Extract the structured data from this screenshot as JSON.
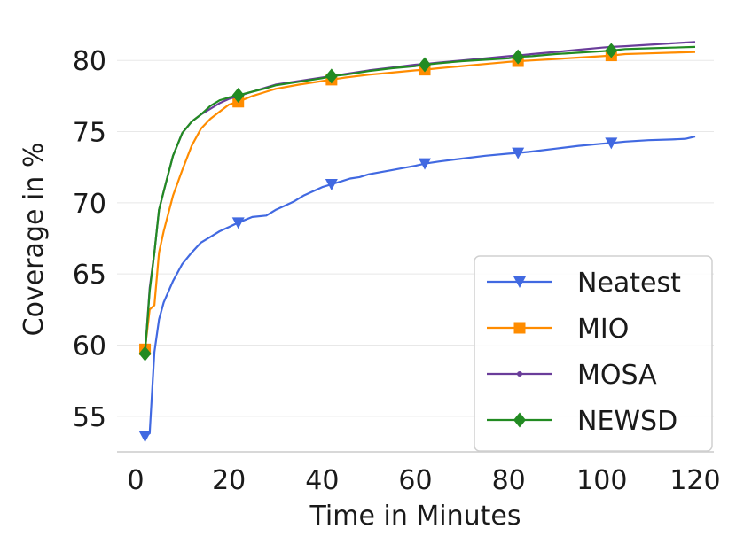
{
  "chart_data": {
    "type": "line",
    "title": "",
    "xlabel": "Time in Minutes",
    "ylabel": "Coverage in %",
    "xlim": [
      -4,
      124
    ],
    "ylim": [
      52.5,
      83
    ],
    "xticks": [
      0,
      20,
      40,
      60,
      80,
      100,
      120
    ],
    "yticks": [
      55,
      60,
      65,
      70,
      75,
      80
    ],
    "xtick_labels": [
      "0",
      "20",
      "40",
      "60",
      "80",
      "100",
      "120"
    ],
    "ytick_labels": [
      "55",
      "60",
      "65",
      "70",
      "75",
      "80"
    ],
    "grid": "horizontal",
    "legend_position": "bottom-right",
    "series": [
      {
        "name": "Neatest",
        "color": "#4169e1",
        "marker": "triangle-down",
        "x": [
          2,
          3,
          4,
          5,
          6,
          8,
          10,
          12,
          14,
          16,
          18,
          20,
          22,
          25,
          28,
          30,
          32,
          34,
          36,
          38,
          40,
          42,
          44,
          46,
          48,
          50,
          55,
          60,
          62,
          65,
          70,
          75,
          80,
          82,
          85,
          90,
          95,
          100,
          102,
          105,
          110,
          115,
          118,
          120
        ],
        "y": [
          53.6,
          53.8,
          59.5,
          61.8,
          63,
          64.5,
          65.7,
          66.5,
          67.2,
          67.6,
          68,
          68.3,
          68.6,
          69,
          69.1,
          69.5,
          69.8,
          70.1,
          70.5,
          70.8,
          71.1,
          71.3,
          71.5,
          71.7,
          71.8,
          72,
          72.3,
          72.6,
          72.75,
          72.9,
          73.1,
          73.3,
          73.45,
          73.5,
          73.6,
          73.8,
          74,
          74.15,
          74.2,
          74.3,
          74.4,
          74.45,
          74.5,
          74.65
        ],
        "marker_x": [
          2,
          22,
          42,
          62,
          82,
          102
        ]
      },
      {
        "name": "MIO",
        "color": "#ff8c00",
        "marker": "square",
        "x": [
          2,
          3,
          4,
          5,
          6,
          8,
          10,
          12,
          14,
          16,
          18,
          20,
          22,
          25,
          28,
          30,
          35,
          40,
          42,
          45,
          50,
          55,
          60,
          62,
          65,
          70,
          75,
          80,
          82,
          85,
          90,
          95,
          100,
          102,
          105,
          110,
          115,
          120
        ],
        "y": [
          59.7,
          62.5,
          62.8,
          66.5,
          68,
          70.5,
          72.3,
          74,
          75.2,
          75.9,
          76.4,
          76.9,
          77.1,
          77.5,
          77.8,
          78,
          78.3,
          78.55,
          78.65,
          78.8,
          79,
          79.15,
          79.3,
          79.35,
          79.45,
          79.6,
          79.75,
          79.9,
          79.95,
          80,
          80.1,
          80.2,
          80.3,
          80.35,
          80.45,
          80.5,
          80.55,
          80.6
        ],
        "marker_x": [
          2,
          22,
          42,
          62,
          82,
          102
        ]
      },
      {
        "name": "MOSA",
        "color": "#6a3d9a",
        "marker": "dot",
        "x": [
          2,
          3,
          4,
          5,
          6,
          8,
          10,
          12,
          14,
          16,
          18,
          20,
          22,
          25,
          28,
          30,
          35,
          40,
          42,
          45,
          50,
          55,
          60,
          62,
          65,
          70,
          75,
          80,
          82,
          85,
          90,
          95,
          100,
          102,
          105,
          110,
          115,
          120
        ],
        "y": [
          59.4,
          64,
          66.5,
          69.5,
          70.8,
          73.3,
          74.9,
          75.7,
          76.2,
          76.6,
          77,
          77.3,
          77.5,
          77.8,
          78.1,
          78.3,
          78.55,
          78.8,
          78.9,
          79.05,
          79.3,
          79.5,
          79.7,
          79.75,
          79.85,
          80,
          80.15,
          80.3,
          80.35,
          80.45,
          80.6,
          80.75,
          80.9,
          80.95,
          81,
          81.1,
          81.2,
          81.3
        ],
        "marker_x": [
          2,
          22,
          42,
          62,
          82,
          102
        ]
      },
      {
        "name": "NEWSD",
        "color": "#228b22",
        "marker": "diamond",
        "x": [
          2,
          3,
          4,
          5,
          6,
          8,
          10,
          12,
          14,
          16,
          18,
          20,
          22,
          25,
          28,
          30,
          35,
          40,
          42,
          45,
          50,
          55,
          60,
          62,
          65,
          70,
          75,
          80,
          82,
          85,
          90,
          95,
          100,
          102,
          105,
          110,
          115,
          120
        ],
        "y": [
          59.4,
          63.8,
          66.5,
          69.5,
          70.8,
          73.3,
          74.9,
          75.7,
          76.2,
          76.8,
          77.2,
          77.4,
          77.55,
          77.8,
          78.05,
          78.25,
          78.5,
          78.75,
          78.9,
          79,
          79.25,
          79.45,
          79.6,
          79.7,
          79.8,
          79.95,
          80.05,
          80.15,
          80.25,
          80.3,
          80.45,
          80.55,
          80.65,
          80.7,
          80.8,
          80.85,
          80.9,
          80.95
        ],
        "marker_x": [
          2,
          22,
          42,
          62,
          82,
          102
        ]
      }
    ]
  }
}
